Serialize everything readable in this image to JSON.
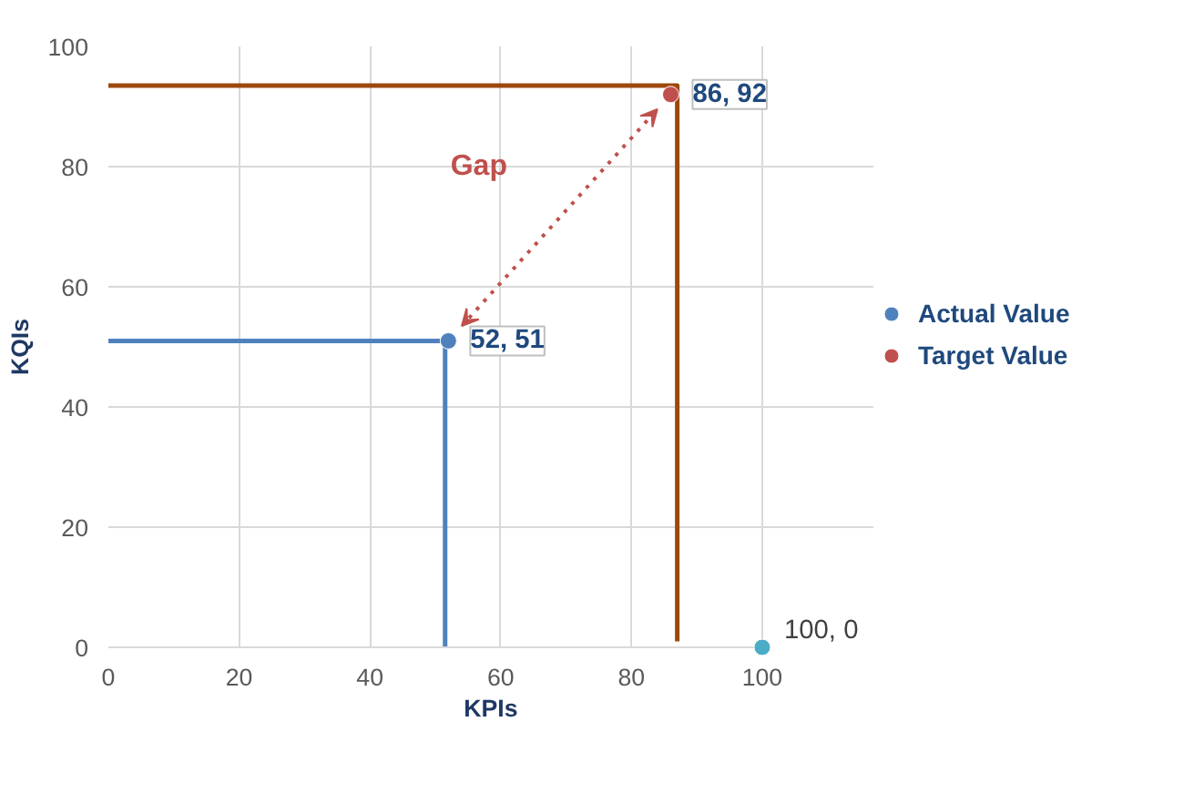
{
  "chart_data": {
    "type": "scatter",
    "xlabel": "KPIs",
    "ylabel": "KQIs",
    "xlim": [
      0,
      100
    ],
    "ylim": [
      0,
      100
    ],
    "xticks": [
      0,
      20,
      40,
      60,
      80,
      100
    ],
    "yticks": [
      0,
      20,
      40,
      60,
      80,
      100
    ],
    "grid": true,
    "legend": "right",
    "marker": "circle",
    "series": [
      {
        "name": "Actual Value",
        "color": "#4f81bd",
        "x": [
          52
        ],
        "values": [
          51
        ],
        "value_labels": [
          "52, 51"
        ]
      },
      {
        "name": "Target Value",
        "color": "#c0504d",
        "x": [
          86
        ],
        "values": [
          92
        ],
        "value_labels": [
          "86, 92"
        ]
      },
      {
        "color": "#4bacc6",
        "x": [
          100
        ],
        "values": [
          0
        ],
        "value_labels": [
          "100, 0"
        ]
      },
      {
        "type": "line",
        "marker": "none",
        "color": "#4f81bd",
        "x": [
          0,
          51.5,
          51.5
        ],
        "values": [
          51,
          51,
          0
        ]
      },
      {
        "type": "line",
        "marker": "none",
        "color": "#9e480e",
        "x": [
          0,
          87,
          87
        ],
        "values": [
          93.5,
          93.5,
          1
        ]
      }
    ],
    "annotations": [
      "Gap"
    ]
  }
}
